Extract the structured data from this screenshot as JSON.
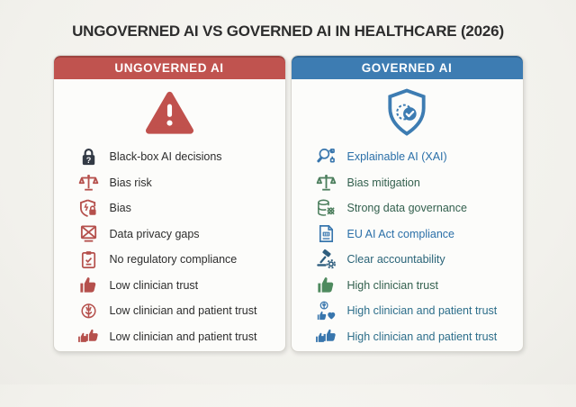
{
  "title": "UNGOVERNED AI VS GOVERNED AI IN HEALTHCARE (2026)",
  "columns": [
    {
      "id": "ungoverned",
      "header": "UNGOVERNED AI",
      "header_bg": "#c0534f",
      "hero_icon": "warning-triangle-icon",
      "hero_color": "#c0514d",
      "items": [
        {
          "icon": "lock-question-icon",
          "icon_color": "#333a45",
          "text_color": "#2d2d2d",
          "label": "Black-box AI decisions"
        },
        {
          "icon": "scales-icon",
          "icon_color": "#b5504c",
          "text_color": "#2d2d2d",
          "label": "Bias risk"
        },
        {
          "icon": "shield-lock-icon",
          "icon_color": "#b5504c",
          "text_color": "#2d2d2d",
          "label": "Bias"
        },
        {
          "icon": "crossed-box-icon",
          "icon_color": "#b5504c",
          "text_color": "#2d2d2d",
          "label": "Data privacy gaps"
        },
        {
          "icon": "clipboard-check-icon",
          "icon_color": "#b5504c",
          "text_color": "#2d2d2d",
          "label": "No regulatory compliance"
        },
        {
          "icon": "thumbs-up-icon",
          "icon_color": "#b5504c",
          "text_color": "#2d2d2d",
          "label": "Low clinician trust"
        },
        {
          "icon": "brain-icon",
          "icon_color": "#b5504c",
          "text_color": "#2d2d2d",
          "label": "Low clinician and patient trust"
        },
        {
          "icon": "double-thumbs-up-icon",
          "icon_color": "#b5504c",
          "text_color": "#2d2d2d",
          "label": "Low clinician and patient trust"
        }
      ]
    },
    {
      "id": "governed",
      "header": "GOVERNED AI",
      "header_bg": "#3d7cb2",
      "hero_icon": "shield-gear-check-icon",
      "hero_color": "#3d7cb2",
      "items": [
        {
          "icon": "search-nodes-icon",
          "icon_color": "#3876ad",
          "text_color": "#2a6fa8",
          "label": "Explainable AI (XAI)"
        },
        {
          "icon": "scales-icon",
          "icon_color": "#4d7f5e",
          "text_color": "#33604e",
          "label": "Bias mitigation"
        },
        {
          "icon": "database-grid-icon",
          "icon_color": "#4d7f5e",
          "text_color": "#33604e",
          "label": "Strong data governance"
        },
        {
          "icon": "document-dots-icon",
          "icon_color": "#3876ad",
          "text_color": "#2a6fa8",
          "label": "EU AI Act compliance"
        },
        {
          "icon": "gavel-gear-icon",
          "icon_color": "#2f5e7e",
          "text_color": "#2a6478",
          "label": "Clear accountability"
        },
        {
          "icon": "thumbs-up-icon",
          "icon_color": "#4e8a5e",
          "text_color": "#33604e",
          "label": "High clinician trust"
        },
        {
          "icon": "brain-thumb-heart-icon",
          "icon_color": "#3876ad",
          "text_color": "#2d6e8a",
          "label": "High clinician and patient trust"
        },
        {
          "icon": "double-thumbs-up-icon",
          "icon_color": "#3876ad",
          "text_color": "#2d6e8a",
          "label": "High clinician and patient trust"
        }
      ]
    }
  ]
}
